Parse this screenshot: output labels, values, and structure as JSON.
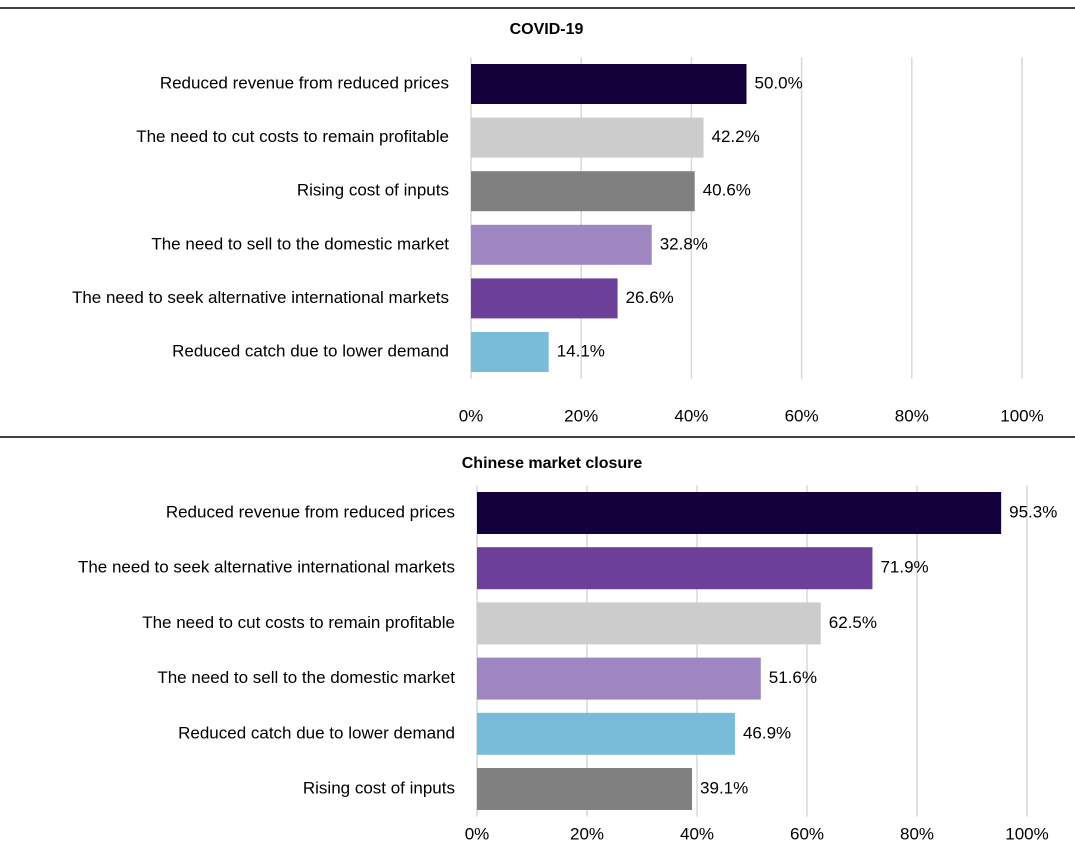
{
  "chart_data": [
    {
      "type": "barh",
      "title": "COVID-19",
      "categories": [
        "Reduced revenue from reduced prices",
        "The need to cut costs to remain profitable",
        "Rising cost of inputs",
        "The need to sell to the domestic market",
        "The need to seek alternative international markets",
        "Reduced catch due to lower demand"
      ],
      "values": [
        50,
        42.2,
        40.6,
        32.8,
        26.6,
        14.1
      ],
      "value_labels": [
        "50.0%",
        "42.2%",
        "40.6%",
        "32.8%",
        "26.6%",
        "14.1%"
      ],
      "colors": [
        "#14003a",
        "#cccccc",
        "#808080",
        "#9e87c0",
        "#6c3f99",
        "#79bcd7"
      ],
      "xlim": [
        0,
        100
      ],
      "xticks": [
        {
          "value": 0,
          "label": "0%"
        },
        {
          "value": 20,
          "label": "20%"
        },
        {
          "value": 40,
          "label": "40%"
        },
        {
          "value": 60,
          "label": "60%"
        },
        {
          "value": 80,
          "label": "80%"
        },
        {
          "value": 100,
          "label": "100%"
        }
      ],
      "grid": true
    },
    {
      "type": "barh",
      "title": "Chinese market closure",
      "categories": [
        "Reduced revenue from reduced prices",
        "The need to seek alternative international markets",
        "The need to cut costs to remain profitable",
        "The need to sell to the domestic market",
        "Reduced catch due to lower demand",
        "Rising cost of inputs"
      ],
      "values": [
        95.3,
        71.9,
        62.5,
        51.6,
        46.9,
        39.1
      ],
      "value_labels": [
        "95.3%",
        "71.9%",
        "62.5%",
        "51.6%",
        "46.9%",
        "39.1%"
      ],
      "colors": [
        "#14003a",
        "#6c3f99",
        "#cccccc",
        "#9e87c0",
        "#79bcd7",
        "#808080"
      ],
      "xlim": [
        0,
        100
      ],
      "xticks": [
        {
          "value": 0,
          "label": "0%"
        },
        {
          "value": 20,
          "label": "20%"
        },
        {
          "value": 40,
          "label": "40%"
        },
        {
          "value": 60,
          "label": "60%"
        },
        {
          "value": 80,
          "label": "80%"
        },
        {
          "value": 100,
          "label": "100%"
        }
      ],
      "grid": true
    }
  ]
}
